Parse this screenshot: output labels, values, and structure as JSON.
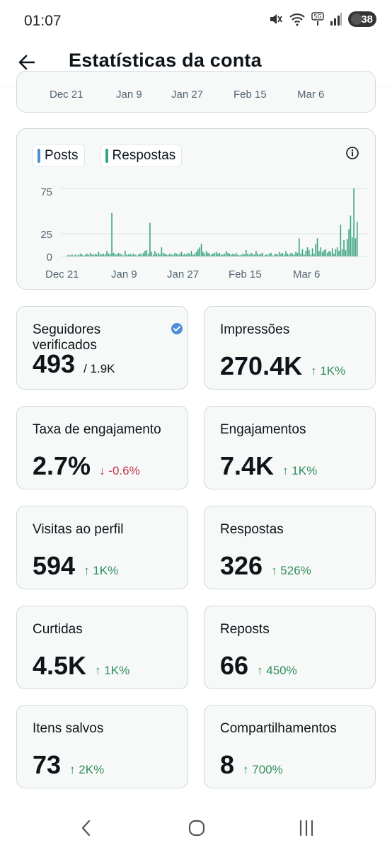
{
  "status_bar": {
    "time": "01:07",
    "battery": "38",
    "icons": [
      "mute-icon",
      "wifi-icon",
      "5g-icon",
      "signal-icon",
      "battery-icon"
    ]
  },
  "header": {
    "title": "Estatísticas da conta",
    "back_icon": "arrow-left-icon"
  },
  "top_chart": {
    "x_labels": [
      "Dec 21",
      "Jan 9",
      "Jan 27",
      "Feb 15",
      "Mar 6"
    ]
  },
  "colors": {
    "posts": "#4c8fd6",
    "respostas": "#3aa381",
    "delta_up": "#2f8f5b",
    "delta_down": "#c5334a",
    "verified": "#4c8fd6"
  },
  "chart_data": {
    "type": "bar",
    "legend": [
      "Posts",
      "Respostas"
    ],
    "x_tick_labels": [
      "Dec 21",
      "Jan 9",
      "Jan 27",
      "Feb 15",
      "Mar 6"
    ],
    "y_tick_labels": [
      "75",
      "25",
      "0"
    ],
    "ylim": [
      0,
      80
    ],
    "grid": true,
    "series": [
      {
        "name": "Respostas",
        "values": [
          1,
          2,
          1,
          2,
          1,
          2,
          1,
          2,
          3,
          2,
          1,
          2,
          3,
          2,
          4,
          2,
          2,
          3,
          2,
          5,
          3,
          2,
          3,
          2,
          6,
          3,
          3,
          48,
          4,
          3,
          2,
          4,
          3,
          2,
          1,
          6,
          2,
          2,
          3,
          2,
          3,
          2,
          1,
          2,
          3,
          2,
          4,
          6,
          7,
          3,
          37,
          5,
          2,
          6,
          3,
          4,
          2,
          10,
          4,
          3,
          2,
          2,
          3,
          2,
          2,
          4,
          3,
          2,
          3,
          5,
          2,
          3,
          2,
          4,
          3,
          6,
          2,
          3,
          5,
          8,
          10,
          14,
          5,
          3,
          6,
          4,
          3,
          2,
          3,
          4,
          5,
          3,
          4,
          2,
          2,
          3,
          6,
          4,
          3,
          2,
          3,
          2,
          4,
          2,
          1,
          2,
          3,
          2,
          7,
          3,
          2,
          4,
          3,
          2,
          6,
          3,
          2,
          3,
          4,
          1,
          2,
          2,
          3,
          4,
          1,
          2,
          3,
          2,
          5,
          3,
          4,
          2,
          6,
          3,
          2,
          4,
          3,
          2,
          5,
          4,
          20,
          3,
          8,
          2,
          6,
          10,
          7,
          2,
          9,
          3,
          14,
          20,
          6,
          10,
          5,
          7,
          8,
          4,
          6,
          5,
          9,
          3,
          8,
          10,
          6,
          35,
          8,
          18,
          7,
          19,
          30,
          45,
          21,
          75,
          20,
          38
        ]
      }
    ]
  },
  "stats": [
    {
      "label": "Seguidores verificados",
      "value": "493",
      "sub": "/ 1.9K",
      "verified": true
    },
    {
      "label": "Impressões",
      "value": "270.4K",
      "delta": "↑ 1K%",
      "dir": "up"
    },
    {
      "label": "Taxa de engajamento",
      "value": "2.7%",
      "delta": "↓ -0.6%",
      "dir": "down"
    },
    {
      "label": "Engajamentos",
      "value": "7.4K",
      "delta": "↑ 1K%",
      "dir": "up"
    },
    {
      "label": "Visitas ao perfil",
      "value": "594",
      "delta": "↑ 1K%",
      "dir": "up"
    },
    {
      "label": "Respostas",
      "value": "326",
      "delta": "↑ 526%",
      "dir": "up"
    },
    {
      "label": "Curtidas",
      "value": "4.5K",
      "delta": "↑ 1K%",
      "dir": "up"
    },
    {
      "label": "Reposts",
      "value": "66",
      "delta": "↑ 450%",
      "dir": "up"
    },
    {
      "label": "Itens salvos",
      "value": "73",
      "delta": "↑ 2K%",
      "dir": "up"
    },
    {
      "label": "Compartilhamentos",
      "value": "8",
      "delta": "↑ 700%",
      "dir": "up"
    }
  ],
  "nav": {
    "back_icon": "chevron-left-icon",
    "home_icon": "home-circle-icon",
    "recents_icon": "recents-icon"
  }
}
